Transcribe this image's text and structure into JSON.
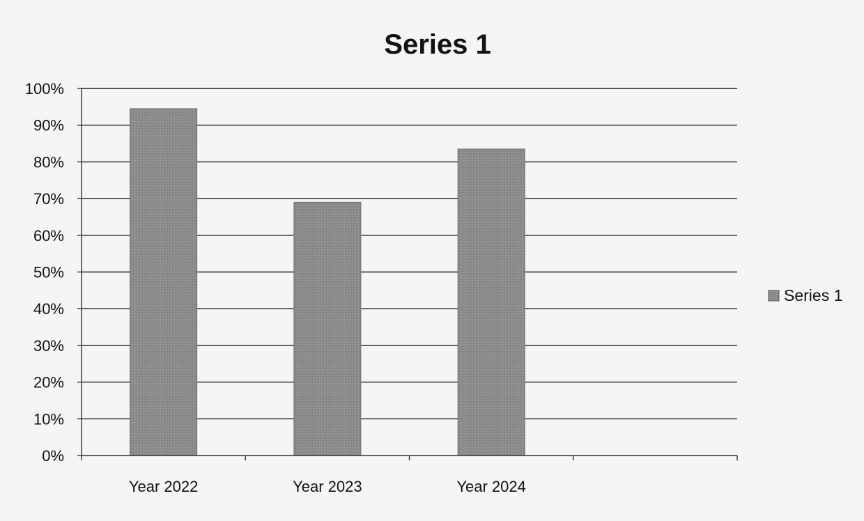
{
  "chart_data": {
    "type": "bar",
    "title": "Series 1",
    "xlabel": "",
    "ylabel": "",
    "categories": [
      "Year 2022",
      "Year 2023",
      "Year 2024",
      ""
    ],
    "series": [
      {
        "name": "Series 1",
        "values": [
          0.945,
          0.69,
          0.835,
          null
        ]
      }
    ],
    "ylim": [
      0,
      1
    ],
    "y_ticks": [
      "0%",
      "10%",
      "20%",
      "30%",
      "40%",
      "50%",
      "60%",
      "70%",
      "80%",
      "90%",
      "100%"
    ],
    "y_tick_values": [
      0,
      0.1,
      0.2,
      0.3,
      0.4,
      0.5,
      0.6,
      0.7,
      0.8,
      0.9,
      1.0
    ],
    "grid": true,
    "legend_position": "right",
    "colors": {
      "bar": "#8c8a8b",
      "bar_edge": "#6e6c6d",
      "grid": "#222222",
      "axis": "#333333"
    }
  }
}
